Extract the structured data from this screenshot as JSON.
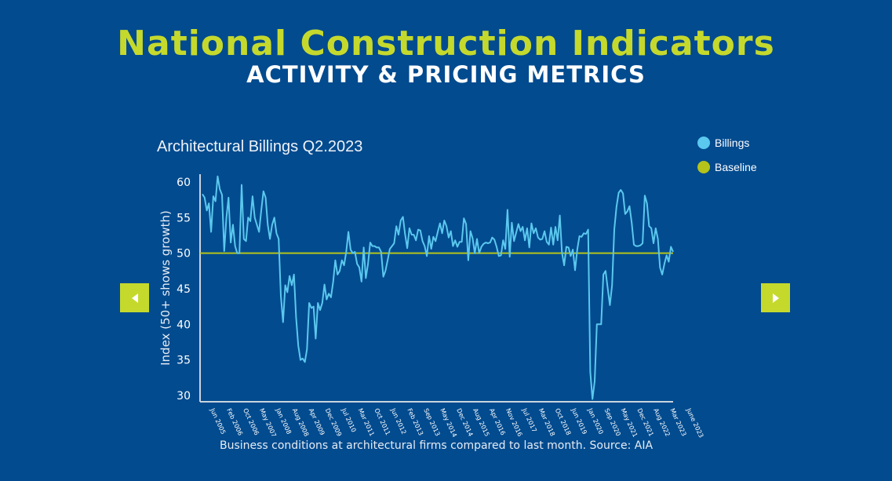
{
  "header": {
    "title": "National Construction Indicators",
    "subtitle": "ACTIVITY & PRICING METRICS"
  },
  "navigation": {
    "prev_icon": "triangle-left-icon",
    "next_icon": "triangle-right-icon"
  },
  "colors": {
    "background": "#024b8f",
    "accent": "#c5d92d",
    "billings": "#5bc8ee",
    "baseline": "#b5c31a"
  },
  "chart_data": {
    "type": "line",
    "title": "Architectural Billings Q2.2023",
    "ylabel": "Index (50+ shows growth)",
    "xlabel": "",
    "caption": "Business conditions at architectural firms compared to last month. Source: AIA",
    "ylim": [
      30,
      61
    ],
    "yticks": [
      30,
      35,
      40,
      45,
      50,
      55,
      60
    ],
    "x_start": "Jun 2005",
    "x_end": "Jun 2023",
    "frequency": "monthly",
    "xtick_labels": [
      "Jun 2005",
      "Feb 2006",
      "Oct 2006",
      "May 2007",
      "Jan 2008",
      "Aug 2008",
      "Apr 2009",
      "Dec 2009",
      "Jul 2010",
      "Mar 2011",
      "Oct 2011",
      "Jun 2012",
      "Feb 2013",
      "Sep 2013",
      "May 2014",
      "Dec 2014",
      "Aug 2015",
      "Apr 2016",
      "Nov 2016",
      "Jul 2017",
      "Mar 2018",
      "Oct 2018",
      "Jun 2019",
      "Jan 2020",
      "Sep 2020",
      "May 2021",
      "Dec 2021",
      "Aug 2022",
      "Mar 2023",
      "June 2023"
    ],
    "legend_position": "top-right",
    "grid": false,
    "series": [
      {
        "name": "Billings",
        "color": "#5bc8ee",
        "values": [
          58.3,
          57.8,
          56,
          57,
          53,
          58,
          57.3,
          60.8,
          59,
          58.2,
          50.3,
          55,
          57.8,
          51.5,
          54,
          51,
          50,
          50,
          59.6,
          52,
          51.7,
          55,
          54.5,
          58,
          55,
          54,
          53,
          56,
          58.7,
          57.8,
          54,
          52,
          54,
          55,
          52.8,
          52,
          44,
          40.3,
          45.5,
          44.5,
          46.8,
          45.5,
          47,
          41,
          37,
          35,
          35.2,
          34.7,
          36.5,
          43,
          42.3,
          42.5,
          38,
          43,
          42,
          43,
          45.6,
          43.5,
          44.3,
          43.8,
          46,
          49,
          47,
          47.5,
          49,
          48.3,
          50.2,
          53,
          50.5,
          50,
          50.2,
          48.5,
          48,
          46,
          50.8,
          46.5,
          48.5,
          51.5,
          51,
          51,
          50.8,
          50.8,
          50.2,
          46.7,
          47.5,
          49,
          50.6,
          51,
          51.4,
          53.8,
          52.6,
          54.6,
          55.1,
          52.7,
          50.7,
          53.5,
          52.6,
          52.6,
          51.8,
          53.3,
          53.2,
          51.7,
          51,
          49.6,
          52.4,
          50.6,
          52.3,
          51.7,
          53,
          54.2,
          52.8,
          54.6,
          53.8,
          52.2,
          53.1,
          51,
          51.8,
          50.9,
          51.6,
          51.6,
          54.9,
          54.1,
          49,
          53.1,
          52.1,
          50,
          52,
          50,
          50.9,
          51.3,
          51.5,
          51.4,
          51.5,
          52.2,
          51.9,
          50.9,
          49.6,
          49.7,
          51.8,
          50.6,
          56.1,
          49.5,
          54.3,
          51.7,
          52.9,
          54.1,
          53.1,
          53.7,
          51.8,
          53.5,
          50.8,
          54.2,
          52.8,
          53.5,
          52.2,
          51.9,
          52,
          53.1,
          51.6,
          51.2,
          53.6,
          51.2,
          53.7,
          51.8,
          55.3,
          50.1,
          48.3,
          50.9,
          50.8,
          49.6,
          50.5,
          47.6,
          50.5,
          52.4,
          52.3,
          52.8,
          52.7,
          53.3,
          33.3,
          29.5,
          32,
          40,
          40,
          40,
          47,
          47.5,
          45,
          42.7,
          45.5,
          53.3,
          56.5,
          58.5,
          58.9,
          58.4,
          55.5,
          55.9,
          56.6,
          54.3,
          51.2,
          51,
          51,
          51.1,
          51.4,
          58.1,
          57,
          53.8,
          53.5,
          51.4,
          53.5,
          52,
          48,
          47,
          48.5,
          49.7,
          48.8,
          50.9,
          50.2
        ]
      },
      {
        "name": "Baseline",
        "color": "#b5c31a",
        "value": 50
      }
    ]
  }
}
